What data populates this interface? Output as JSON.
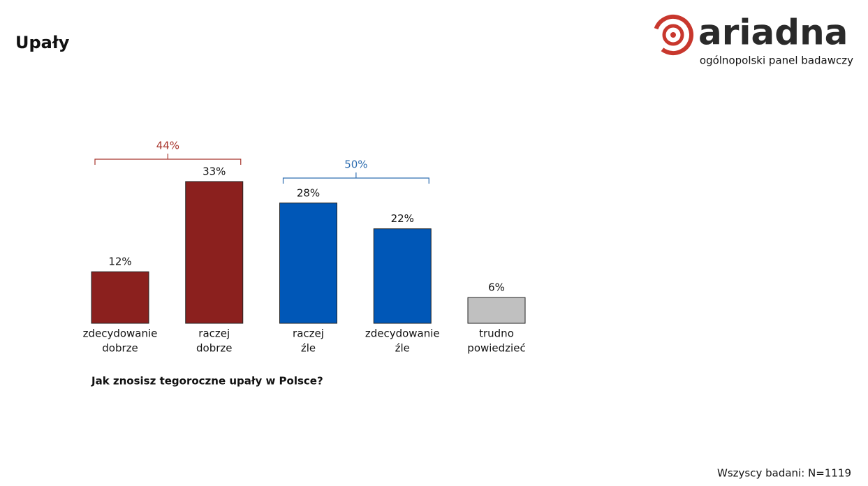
{
  "chart_data": {
    "type": "bar",
    "title": "Upały",
    "question": "Jak znosisz tegoroczne upały w Polsce?",
    "footnote": "Wszyscy badani: N=1119",
    "brand": {
      "name": "ariadna",
      "tagline": "ogólnopolski panel badawczy"
    },
    "categories": [
      [
        "zdecydowanie",
        "dobrze"
      ],
      [
        "raczej",
        "dobrze"
      ],
      [
        "raczej",
        "źle"
      ],
      [
        "zdecydowanie",
        "źle"
      ],
      [
        "trudno",
        "powiedzieć"
      ]
    ],
    "values": [
      12,
      33,
      28,
      22,
      6
    ],
    "value_labels": [
      "12%",
      "33%",
      "28%",
      "22%",
      "6%"
    ],
    "colors": [
      "#8b201e",
      "#8b201e",
      "#0057b7",
      "#0057b7",
      "#c0c0c0"
    ],
    "groups": [
      {
        "value": 44,
        "label": "44%",
        "span": [
          0,
          1
        ],
        "color": "#a8352c"
      },
      {
        "value": 50,
        "label": "50%",
        "span": [
          2,
          3
        ],
        "color": "#2e6db0"
      }
    ]
  }
}
